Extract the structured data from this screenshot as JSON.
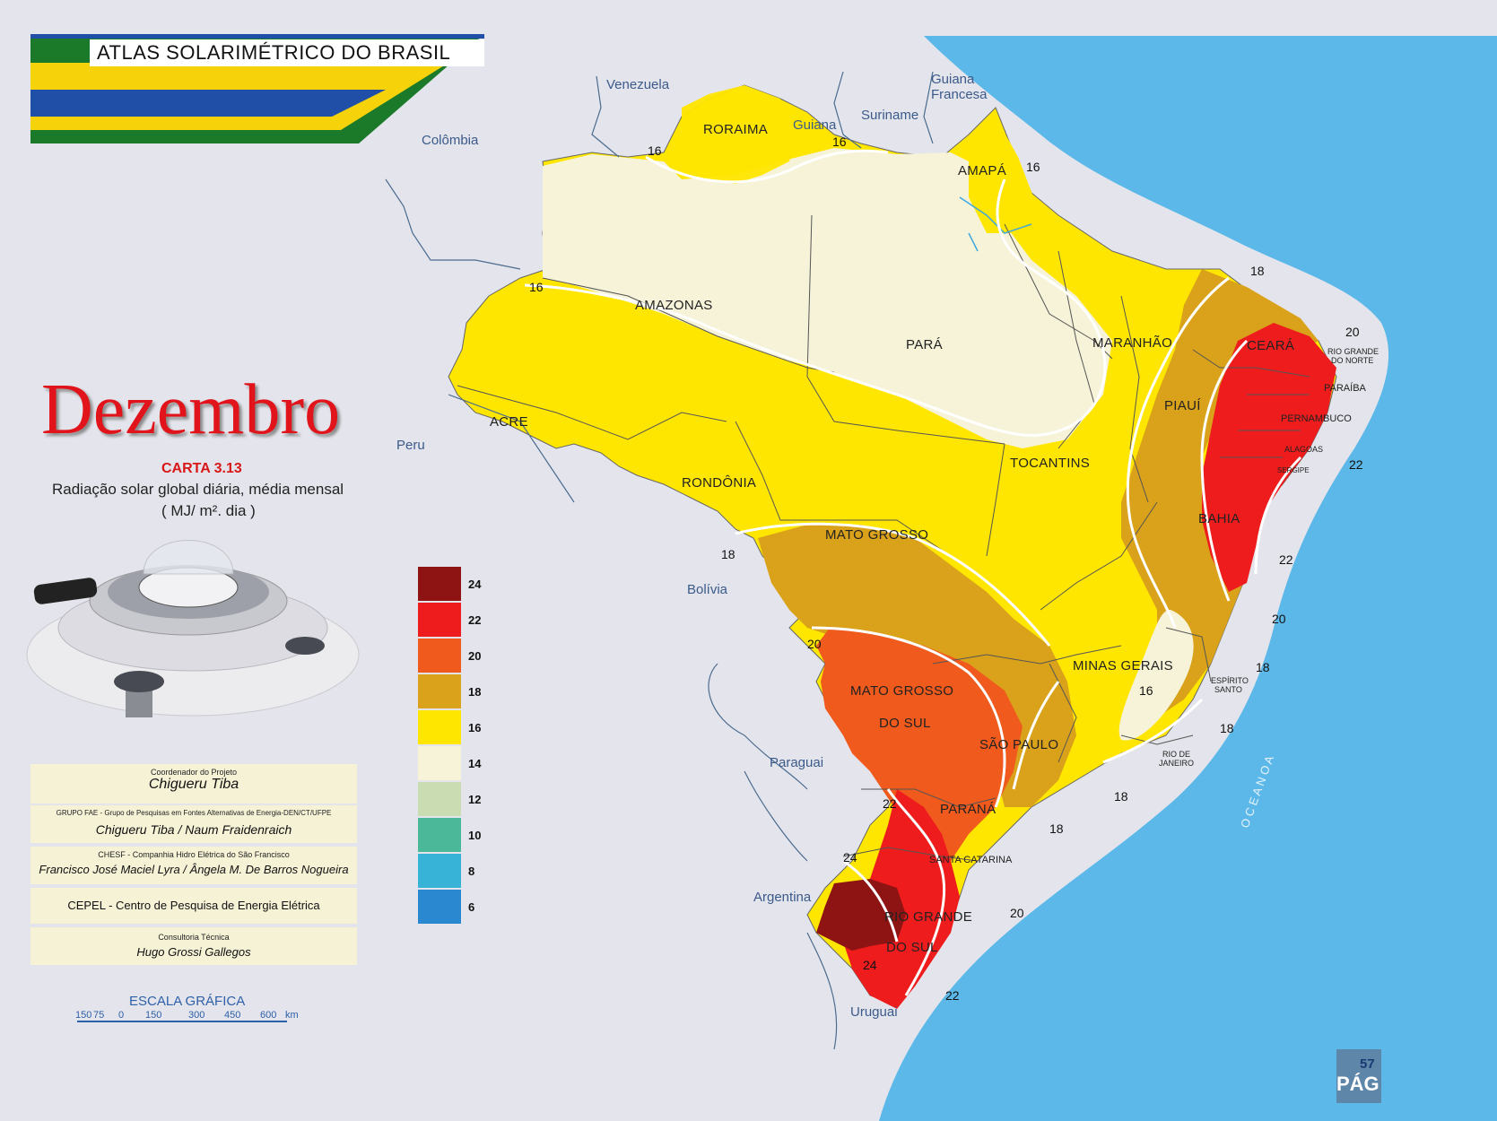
{
  "header": {
    "title": "ATLAS  SOLARIMÉTRICO DO  BRASIL"
  },
  "month": "Dezembro",
  "chart_code": "CARTA 3.13",
  "subtitle_line1": "Radiação solar global diária, média mensal",
  "subtitle_line2": "( MJ/ m². dia )",
  "legend": {
    "items": [
      {
        "value": "24",
        "color": "#8e1414"
      },
      {
        "value": "22",
        "color": "#ee1c1c"
      },
      {
        "value": "20",
        "color": "#f05a1c"
      },
      {
        "value": "18",
        "color": "#d9a21a"
      },
      {
        "value": "16",
        "color": "#ffe600"
      },
      {
        "value": "14",
        "color": "#f6f3d8"
      },
      {
        "value": "12",
        "color": "#c9dcb2"
      },
      {
        "value": "10",
        "color": "#4cb89a"
      },
      {
        "value": "8",
        "color": "#36b3d6"
      },
      {
        "value": "6",
        "color": "#2a88d0"
      }
    ]
  },
  "credits": {
    "coord_label": "Coordenador do Projeto",
    "coord_name": "Chigueru  Tiba",
    "fae_label": "GRUPO  FAE - Grupo de Pesquisas em Fontes Alternativas de Energia-DEN/CT/UFPE",
    "fae_names": "Chigueru Tiba /   Naum  Fraidenraich",
    "chesf_label": "CHESF  -  Companhia Hidro Elétrica do São Francisco",
    "chesf_names": "Francisco José Maciel Lyra / Ângela M. De Barros Nogueira",
    "cepel": "CEPEL - Centro de Pesquisa de Energia Elétrica",
    "consult_label": "Consultoria Técnica",
    "consult_name": "Hugo  Grossi Gallegos"
  },
  "scale": {
    "title": "ESCALA  GRÁFICA",
    "ticks": [
      "150",
      "75",
      "0",
      "150",
      "300",
      "450",
      "600"
    ],
    "unit": "km"
  },
  "countries": {
    "venezuela": "Venezuela",
    "guiana_francesa_1": "Guiana",
    "guiana_francesa_2": "Francesa",
    "suriname": "Suriname",
    "guiana": "Guiana",
    "colombia": "Colômbia",
    "peru": "Peru",
    "bolivia": "Bolívia",
    "paraguai": "Paraguai",
    "argentina": "Argentina",
    "uruguai": "Uruguai",
    "oceano": "O C E A N O   A"
  },
  "states": {
    "roraima": "RORAIMA",
    "amapa": "AMAPÁ",
    "amazonas": "AMAZONAS",
    "para": "PARÁ",
    "maranhao": "MARANHÃO",
    "ceara": "CEARÁ",
    "rn_1": "RIO GRANDE",
    "rn_2": "DO NORTE",
    "paraiba": "PARAÍBA",
    "pernambuco": "PERNAMBUCO",
    "alagoas": "ALAGOAS",
    "sergipe": "SERGIPE",
    "piaui": "PIAUÍ",
    "acre": "ACRE",
    "rondonia": "RONDÔNIA",
    "tocantins": "TOCANTINS",
    "bahia": "BAHIA",
    "mato_grosso": "MATO  GROSSO",
    "minas_gerais": "MINAS  GERAIS",
    "espirito_santo_1": "ESPÍRITO",
    "espirito_santo_2": "SANTO",
    "ms_1": "MATO  GROSSO",
    "ms_2": "DO SUL",
    "sao_paulo": "SÃO  PAULO",
    "rio_1": "RIO DE",
    "rio_2": "JANEIRO",
    "parana": "PARANÁ",
    "santa_catarina": "SANTA CATARINA",
    "rs_1": "RIO GRANDE",
    "rs_2": "DO  SUL"
  },
  "isolines": {
    "roraima_w": "16",
    "guiana_16": "16",
    "amapa_16": "16",
    "acre_16": "16",
    "ceara_18": "18",
    "rn_20": "20",
    "se_22": "22",
    "ba_22": "22",
    "ba_20": "20",
    "es_18": "18",
    "rj_18": "18",
    "sp_18": "18",
    "mg_16": "16",
    "mt_18": "18",
    "ms_20": "20",
    "pr_22": "22",
    "pr_18": "18",
    "sc_24": "24",
    "sc_20": "20",
    "rs_24": "24",
    "rs_22": "22"
  },
  "page_number": "57",
  "page_badge": "PÁG"
}
